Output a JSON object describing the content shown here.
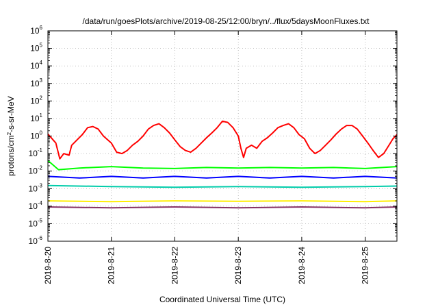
{
  "chart_data": {
    "type": "line",
    "title": "/data/run/goesPlots/archive/2019-08-25/12:00/bryn/../flux/5daysMoonFluxes.txt",
    "xlabel": "Coordinated Universal Time (UTC)",
    "ylabel": {
      "prefix": "protons/cm",
      "superscript": "2",
      "suffix": "-s-sr-MeV"
    },
    "y_scale": "log",
    "ylim": [
      1e-06,
      1000000.0
    ],
    "y_ticks": [
      {
        "base": "10",
        "exp": "-6",
        "value": 1e-06
      },
      {
        "base": "10",
        "exp": "-5",
        "value": 1e-05
      },
      {
        "base": "10",
        "exp": "-4",
        "value": 0.0001
      },
      {
        "base": "10",
        "exp": "-3",
        "value": 0.001
      },
      {
        "base": "10",
        "exp": "-2",
        "value": 0.01
      },
      {
        "base": "10",
        "exp": "-1",
        "value": 0.1
      },
      {
        "base": "10",
        "exp": "0",
        "value": 1
      },
      {
        "base": "10",
        "exp": "1",
        "value": 10
      },
      {
        "base": "10",
        "exp": "2",
        "value": 100
      },
      {
        "base": "10",
        "exp": "3",
        "value": 1000
      },
      {
        "base": "10",
        "exp": "4",
        "value": 10000
      },
      {
        "base": "10",
        "exp": "5",
        "value": 100000
      },
      {
        "base": "10",
        "exp": "6",
        "value": 1000000
      }
    ],
    "xlim": [
      "2019-08-20T00:00",
      "2019-08-25T12:00"
    ],
    "x_ticks": [
      {
        "label": "2019-8-20",
        "date": "2019-08-20T00:00"
      },
      {
        "label": "2019-8-21",
        "date": "2019-08-21T00:00"
      },
      {
        "label": "2019-8-22",
        "date": "2019-08-22T00:00"
      },
      {
        "label": "2019-8-23",
        "date": "2019-08-23T00:00"
      },
      {
        "label": "2019-8-24",
        "date": "2019-08-24T00:00"
      },
      {
        "label": "2019-8-25",
        "date": "2019-08-25T00:00"
      }
    ],
    "grid": true,
    "series": [
      {
        "color": "#ff0000",
        "points": [
          [
            "2019-08-20T00:00",
            1.3
          ],
          [
            "2019-08-20T03:00",
            0.4
          ],
          [
            "2019-08-20T04:30",
            0.05
          ],
          [
            "2019-08-20T06:00",
            0.1
          ],
          [
            "2019-08-20T08:00",
            0.08
          ],
          [
            "2019-08-20T09:00",
            0.3
          ],
          [
            "2019-08-20T11:00",
            0.6
          ],
          [
            "2019-08-20T13:00",
            1.2
          ],
          [
            "2019-08-20T15:00",
            3
          ],
          [
            "2019-08-20T17:00",
            3.5
          ],
          [
            "2019-08-20T19:00",
            2.5
          ],
          [
            "2019-08-20T21:00",
            1
          ],
          [
            "2019-08-21T00:00",
            0.4
          ],
          [
            "2019-08-21T02:00",
            0.12
          ],
          [
            "2019-08-21T04:00",
            0.1
          ],
          [
            "2019-08-21T06:00",
            0.15
          ],
          [
            "2019-08-21T08:00",
            0.3
          ],
          [
            "2019-08-21T10:00",
            0.5
          ],
          [
            "2019-08-21T12:00",
            1
          ],
          [
            "2019-08-21T14:00",
            2.5
          ],
          [
            "2019-08-21T16:00",
            4
          ],
          [
            "2019-08-21T18:00",
            5
          ],
          [
            "2019-08-21T20:00",
            3
          ],
          [
            "2019-08-21T22:00",
            1.5
          ],
          [
            "2019-08-22T00:00",
            0.6
          ],
          [
            "2019-08-22T02:00",
            0.25
          ],
          [
            "2019-08-22T04:00",
            0.15
          ],
          [
            "2019-08-22T06:00",
            0.12
          ],
          [
            "2019-08-22T08:00",
            0.2
          ],
          [
            "2019-08-22T10:00",
            0.4
          ],
          [
            "2019-08-22T12:00",
            0.8
          ],
          [
            "2019-08-22T14:00",
            1.5
          ],
          [
            "2019-08-22T16:00",
            3
          ],
          [
            "2019-08-22T18:00",
            7
          ],
          [
            "2019-08-22T20:00",
            6
          ],
          [
            "2019-08-22T22:00",
            3
          ],
          [
            "2019-08-23T00:00",
            1
          ],
          [
            "2019-08-23T01:00",
            0.2
          ],
          [
            "2019-08-23T02:00",
            0.06
          ],
          [
            "2019-08-23T03:00",
            0.2
          ],
          [
            "2019-08-23T05:00",
            0.3
          ],
          [
            "2019-08-23T07:00",
            0.2
          ],
          [
            "2019-08-23T09:00",
            0.5
          ],
          [
            "2019-08-23T11:00",
            0.8
          ],
          [
            "2019-08-23T13:00",
            1.5
          ],
          [
            "2019-08-23T15:00",
            3
          ],
          [
            "2019-08-23T17:00",
            4
          ],
          [
            "2019-08-23T19:00",
            5
          ],
          [
            "2019-08-23T21:00",
            3
          ],
          [
            "2019-08-23T23:00",
            1.2
          ],
          [
            "2019-08-24T01:00",
            0.7
          ],
          [
            "2019-08-24T03:00",
            0.2
          ],
          [
            "2019-08-24T05:00",
            0.1
          ],
          [
            "2019-08-24T07:00",
            0.15
          ],
          [
            "2019-08-24T09:00",
            0.3
          ],
          [
            "2019-08-24T11:00",
            0.6
          ],
          [
            "2019-08-24T13:00",
            1.3
          ],
          [
            "2019-08-24T15:00",
            2.5
          ],
          [
            "2019-08-24T17:00",
            4
          ],
          [
            "2019-08-24T19:00",
            4
          ],
          [
            "2019-08-24T21:00",
            2.5
          ],
          [
            "2019-08-24T23:00",
            1
          ],
          [
            "2019-08-25T01:00",
            0.4
          ],
          [
            "2019-08-25T03:00",
            0.15
          ],
          [
            "2019-08-25T05:00",
            0.06
          ],
          [
            "2019-08-25T07:00",
            0.1
          ],
          [
            "2019-08-25T09:00",
            0.3
          ],
          [
            "2019-08-25T10:30",
            0.7
          ],
          [
            "2019-08-25T12:00",
            1.2
          ]
        ]
      },
      {
        "color": "#00ff00",
        "points": [
          [
            "2019-08-20T00:00",
            0.04
          ],
          [
            "2019-08-20T04:00",
            0.012
          ],
          [
            "2019-08-20T12:00",
            0.015
          ],
          [
            "2019-08-21T00:00",
            0.018
          ],
          [
            "2019-08-21T12:00",
            0.015
          ],
          [
            "2019-08-22T00:00",
            0.014
          ],
          [
            "2019-08-22T12:00",
            0.016
          ],
          [
            "2019-08-23T00:00",
            0.015
          ],
          [
            "2019-08-23T12:00",
            0.016
          ],
          [
            "2019-08-24T00:00",
            0.015
          ],
          [
            "2019-08-24T12:00",
            0.016
          ],
          [
            "2019-08-25T00:00",
            0.014
          ],
          [
            "2019-08-25T12:00",
            0.018
          ]
        ]
      },
      {
        "color": "#0000ff",
        "points": [
          [
            "2019-08-20T00:00",
            0.005
          ],
          [
            "2019-08-20T12:00",
            0.004
          ],
          [
            "2019-08-21T00:00",
            0.005
          ],
          [
            "2019-08-21T12:00",
            0.004
          ],
          [
            "2019-08-22T00:00",
            0.005
          ],
          [
            "2019-08-22T12:00",
            0.004
          ],
          [
            "2019-08-23T00:00",
            0.005
          ],
          [
            "2019-08-23T12:00",
            0.004
          ],
          [
            "2019-08-24T00:00",
            0.005
          ],
          [
            "2019-08-24T12:00",
            0.004
          ],
          [
            "2019-08-25T00:00",
            0.005
          ],
          [
            "2019-08-25T12:00",
            0.004
          ]
        ]
      },
      {
        "color": "#00ccaa",
        "points": [
          [
            "2019-08-20T00:00",
            0.0015
          ],
          [
            "2019-08-21T00:00",
            0.0013
          ],
          [
            "2019-08-22T00:00",
            0.0012
          ],
          [
            "2019-08-23T00:00",
            0.0013
          ],
          [
            "2019-08-24T00:00",
            0.0012
          ],
          [
            "2019-08-25T00:00",
            0.0013
          ],
          [
            "2019-08-25T12:00",
            0.0014
          ]
        ]
      },
      {
        "color": "#ffee00",
        "points": [
          [
            "2019-08-20T00:00",
            0.0002
          ],
          [
            "2019-08-21T00:00",
            0.00018
          ],
          [
            "2019-08-22T00:00",
            0.0002
          ],
          [
            "2019-08-23T00:00",
            0.00019
          ],
          [
            "2019-08-24T00:00",
            0.0002
          ],
          [
            "2019-08-25T00:00",
            0.00018
          ],
          [
            "2019-08-25T12:00",
            0.0002
          ]
        ]
      },
      {
        "color": "#883366",
        "points": [
          [
            "2019-08-20T00:00",
            9e-05
          ],
          [
            "2019-08-21T00:00",
            8e-05
          ],
          [
            "2019-08-22T00:00",
            9e-05
          ],
          [
            "2019-08-23T00:00",
            8e-05
          ],
          [
            "2019-08-24T00:00",
            9e-05
          ],
          [
            "2019-08-25T00:00",
            8e-05
          ],
          [
            "2019-08-25T12:00",
            9e-05
          ]
        ]
      }
    ]
  }
}
